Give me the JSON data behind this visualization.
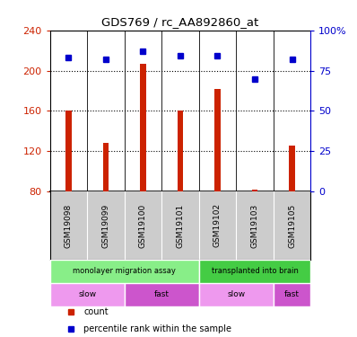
{
  "title": "GDS769 / rc_AA892860_at",
  "samples": [
    "GSM19098",
    "GSM19099",
    "GSM19100",
    "GSM19101",
    "GSM19102",
    "GSM19103",
    "GSM19105"
  ],
  "count_values": [
    160,
    128,
    207,
    160,
    182,
    82,
    126
  ],
  "percentile_values": [
    83,
    82,
    87,
    84,
    84,
    70,
    82
  ],
  "ylim_left": [
    80,
    240
  ],
  "ylim_right": [
    0,
    100
  ],
  "yticks_left": [
    80,
    120,
    160,
    200,
    240
  ],
  "yticks_right": [
    0,
    25,
    50,
    75,
    100
  ],
  "ytick_labels_right": [
    "0",
    "25",
    "50",
    "75",
    "100%"
  ],
  "bar_color": "#cc2200",
  "dot_color": "#0000cc",
  "sample_bg_color": "#cccccc",
  "protocol_groups": [
    {
      "label": "monolayer migration assay",
      "start": 0,
      "end": 4,
      "color": "#88ee88"
    },
    {
      "label": "transplanted into brain",
      "start": 4,
      "end": 7,
      "color": "#44cc44"
    }
  ],
  "cell_type_groups": [
    {
      "label": "slow",
      "start": 0,
      "end": 2,
      "color": "#ee99ee"
    },
    {
      "label": "fast",
      "start": 2,
      "end": 4,
      "color": "#cc55cc"
    },
    {
      "label": "slow",
      "start": 4,
      "end": 6,
      "color": "#ee99ee"
    },
    {
      "label": "fast",
      "start": 6,
      "end": 7,
      "color": "#cc55cc"
    }
  ],
  "legend_items": [
    {
      "label": "count",
      "color": "#cc2200"
    },
    {
      "label": "percentile rank within the sample",
      "color": "#0000cc"
    }
  ],
  "background_color": "#ffffff"
}
